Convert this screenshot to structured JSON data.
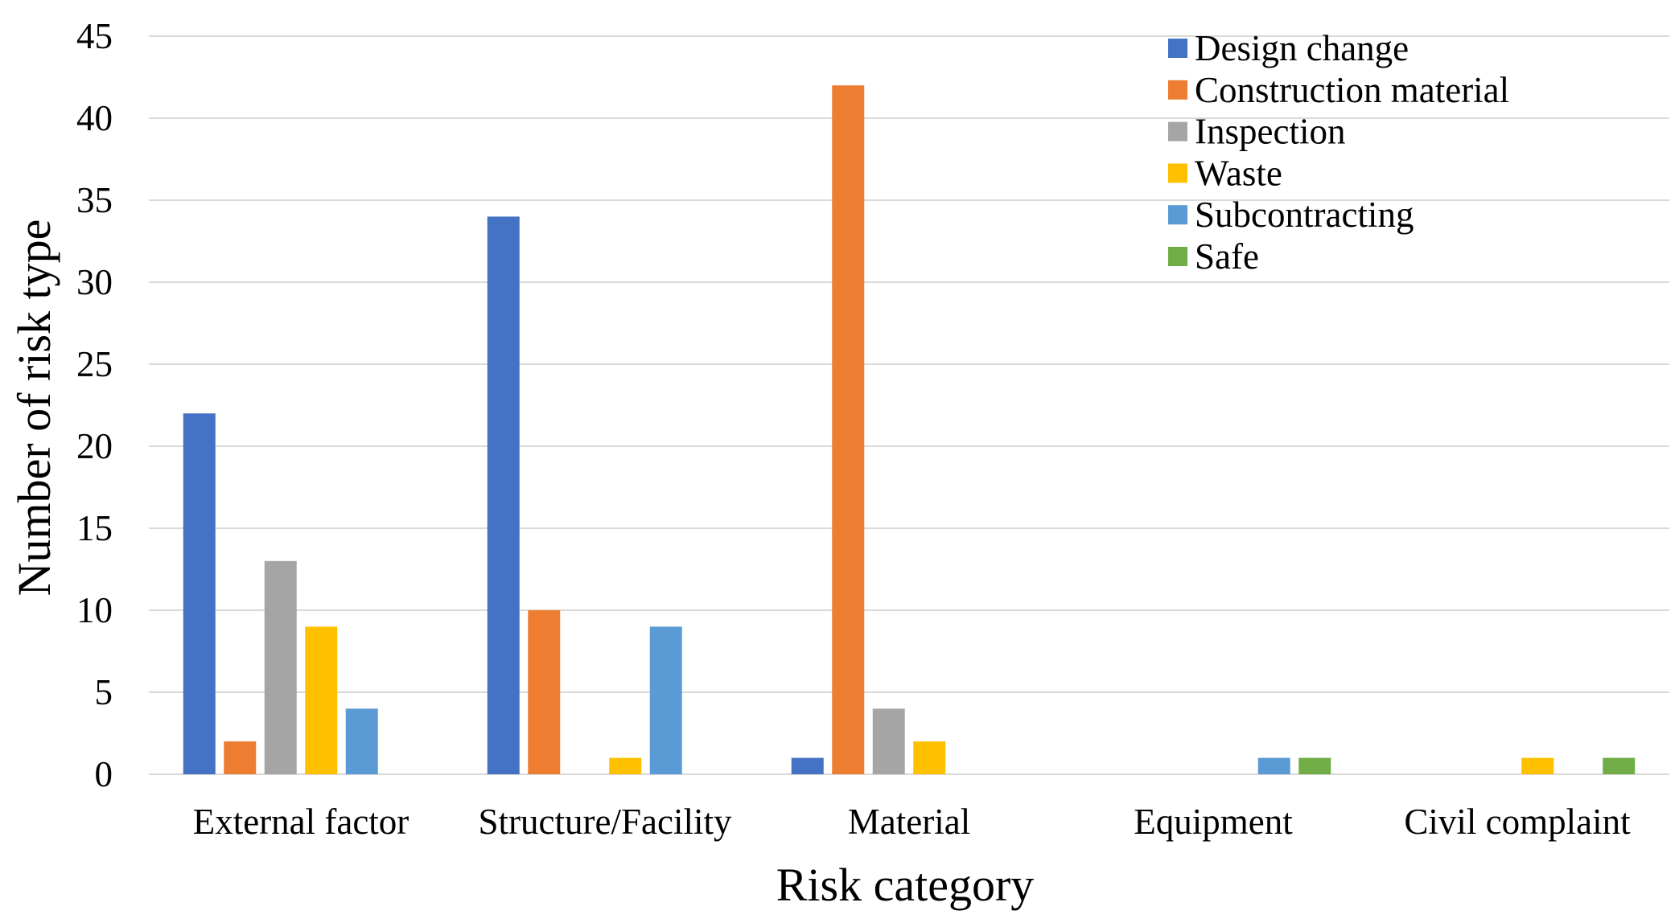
{
  "chart_data": {
    "type": "bar",
    "title": "",
    "xlabel": "Risk category",
    "ylabel": "Number of risk type",
    "ylim": [
      0,
      45
    ],
    "yticks": [
      0,
      5,
      10,
      15,
      20,
      25,
      30,
      35,
      40,
      45
    ],
    "grid": true,
    "legend_position": "top-right",
    "categories": [
      "External factor",
      "Structure/Facility",
      "Material",
      "Equipment",
      "Civil complaint"
    ],
    "series": [
      {
        "name": "Design change",
        "color": "#4472C4",
        "values": [
          22,
          34,
          1,
          0,
          0
        ]
      },
      {
        "name": "Construction material",
        "color": "#ED7D31",
        "values": [
          2,
          10,
          42,
          0,
          0
        ]
      },
      {
        "name": "Inspection",
        "color": "#A5A5A5",
        "values": [
          13,
          0,
          4,
          0,
          0
        ]
      },
      {
        "name": "Waste",
        "color": "#FFC000",
        "values": [
          9,
          1,
          2,
          0,
          1
        ]
      },
      {
        "name": "Subcontracting",
        "color": "#5B9BD5",
        "values": [
          4,
          9,
          0,
          1,
          0
        ]
      },
      {
        "name": "Safe",
        "color": "#70AD47",
        "values": [
          0,
          0,
          0,
          1,
          1
        ]
      }
    ]
  }
}
